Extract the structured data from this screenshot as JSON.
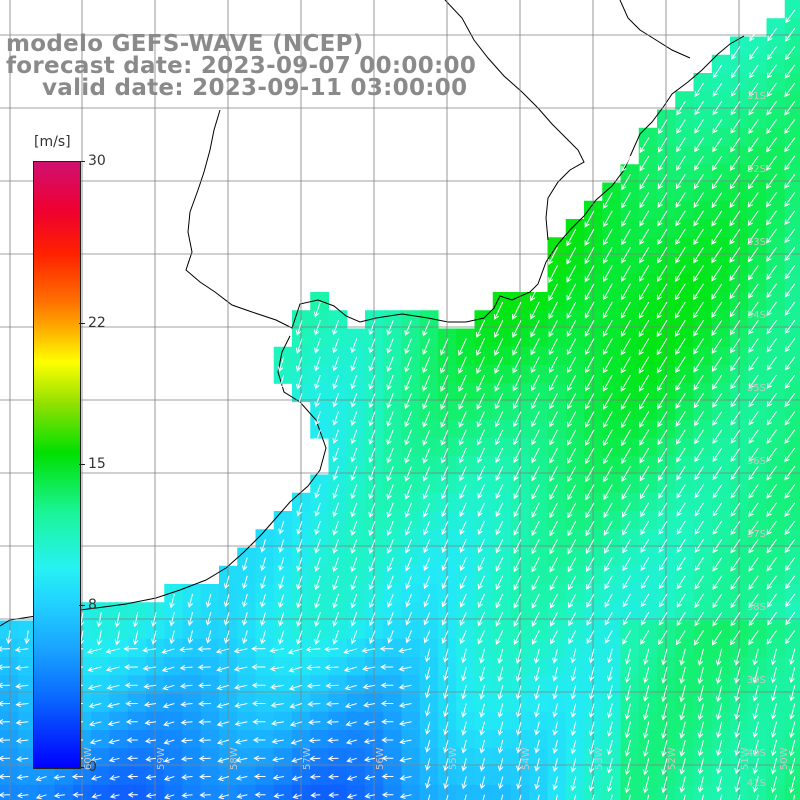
{
  "title": {
    "line1": "modelo GEFS-WAVE (NCEP)",
    "line2": "forecast date: 2023-09-07 00:00:00",
    "line3": "valid date: 2023-09-11 03:00:00"
  },
  "colorbar": {
    "unit": "[m/s]",
    "min": 0,
    "max": 30,
    "ticks": [
      {
        "value": 30,
        "label": "30"
      },
      {
        "value": 22,
        "label": "22"
      },
      {
        "value": 15,
        "label": "15"
      },
      {
        "value": 8,
        "label": "8"
      },
      {
        "value": 0,
        "label": "0"
      }
    ]
  },
  "lat_labels": [
    "31S",
    "32S",
    "33S",
    "34S",
    "35S",
    "36S",
    "37S",
    "38S",
    "39S",
    "40S",
    "41S"
  ],
  "lon_labels": [
    "60W",
    "59W",
    "58W",
    "57W",
    "56W",
    "55W",
    "54W",
    "53W",
    "52W",
    "51W",
    "50W"
  ],
  "colors": {
    "land": "#ffffff",
    "coast": "#000000",
    "grid": "#808080",
    "arrow": "#ffffff",
    "title": "#8a8a8a"
  }
}
